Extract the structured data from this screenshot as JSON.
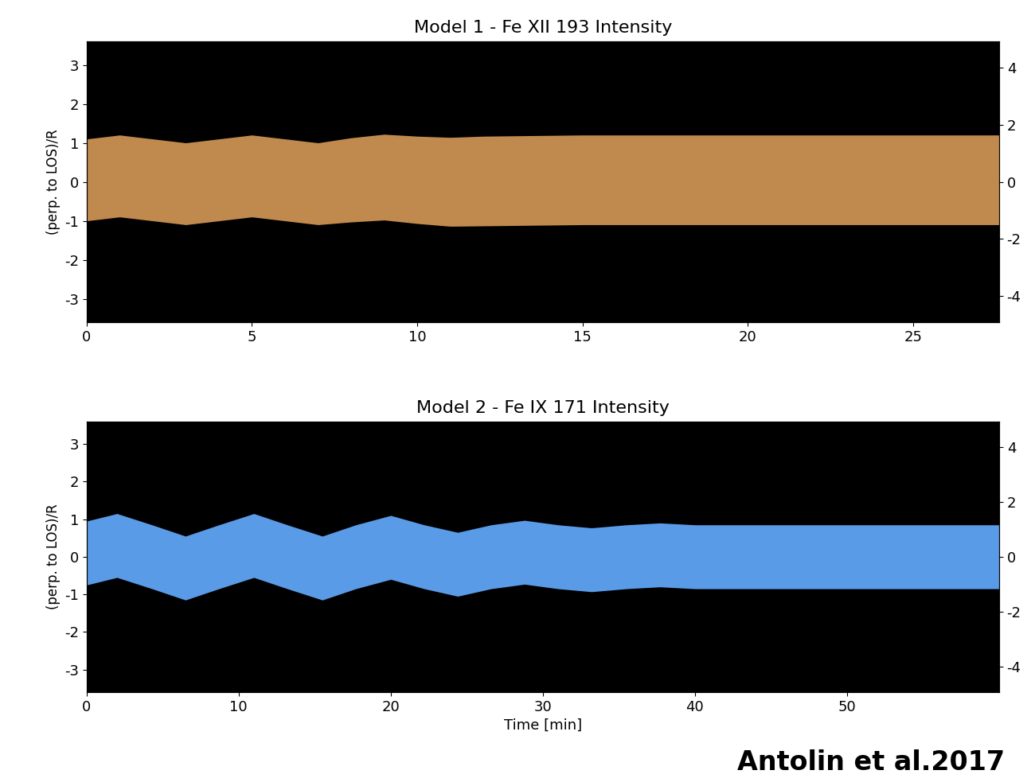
{
  "chart_data": [
    {
      "type": "area",
      "title": "Model 1 - Fe XII 193 Intensity",
      "y_label": "(perp. to LOS)/R",
      "x": [
        0,
        1,
        2,
        3,
        4,
        5,
        6,
        7,
        8,
        9,
        10,
        11,
        12,
        15,
        20,
        25,
        27.6
      ],
      "values": [
        0.05,
        0.15,
        0.05,
        -0.05,
        0.05,
        0.15,
        0.05,
        -0.05,
        0.05,
        0.12,
        0.05,
        0.0,
        0.02,
        0.05,
        0.05,
        0.05,
        0.05
      ],
      "half_width": [
        1.05,
        1.05,
        1.05,
        1.05,
        1.05,
        1.05,
        1.05,
        1.05,
        1.08,
        1.1,
        1.12,
        1.14,
        1.15,
        1.15,
        1.15,
        1.15,
        1.15
      ],
      "color": "#c08a4e",
      "xlim": [
        0,
        27.6
      ],
      "xticks": [
        0,
        5,
        10,
        15,
        20,
        25
      ],
      "ylim": [
        -3.6,
        3.6
      ],
      "yticks": [
        -3,
        -2,
        -1,
        0,
        1,
        2,
        3
      ],
      "y2lim": [
        -4.93,
        4.93
      ],
      "y2ticks": [
        -4,
        -2,
        0,
        2,
        4
      ]
    },
    {
      "type": "area",
      "title": "Model 2 - Fe IX 171 Intensity",
      "y_label": "(perp. to LOS)/R",
      "x_label": "Time [min]",
      "x": [
        0,
        2,
        4.3,
        6.5,
        8.7,
        11,
        13.2,
        15.5,
        17.7,
        20,
        22.2,
        24.4,
        26.6,
        28.8,
        31,
        33.2,
        35.5,
        37.7,
        40,
        45,
        50,
        55,
        60
      ],
      "values": [
        0.1,
        0.3,
        0.0,
        -0.3,
        0.0,
        0.3,
        0.0,
        -0.3,
        0.0,
        0.25,
        0.0,
        -0.2,
        0.0,
        0.12,
        0.0,
        -0.08,
        0.0,
        0.05,
        0.0,
        0.0,
        0.0,
        0.0,
        0.0
      ],
      "half_width": [
        0.85,
        0.85,
        0.85,
        0.85,
        0.85,
        0.85,
        0.85,
        0.85,
        0.85,
        0.85,
        0.85,
        0.85,
        0.85,
        0.85,
        0.85,
        0.85,
        0.85,
        0.85,
        0.85,
        0.85,
        0.85,
        0.85,
        0.85
      ],
      "color": "#5a9be8",
      "xlim": [
        0,
        60
      ],
      "xticks": [
        0,
        10,
        20,
        30,
        40,
        50
      ],
      "ylim": [
        -3.6,
        3.6
      ],
      "yticks": [
        -3,
        -2,
        -1,
        0,
        1,
        2,
        3
      ],
      "y2lim": [
        -4.93,
        4.93
      ],
      "y2ticks": [
        -4,
        -2,
        0,
        2,
        4
      ],
      "annotations": [
        "Antolin et al.2017"
      ]
    }
  ]
}
